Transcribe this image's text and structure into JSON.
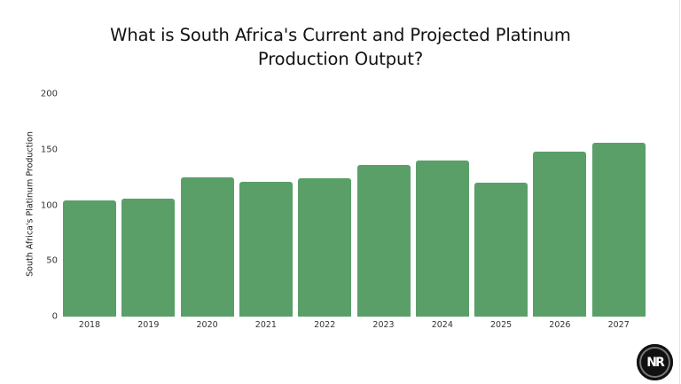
{
  "title": {
    "line1": "What is South Africa's Current and Projected Platinum",
    "line2": "Production Output?"
  },
  "logo": {
    "text": "NR"
  },
  "chart_data": {
    "type": "bar",
    "title": "What is South Africa's Current and Projected Platinum Production Output?",
    "xlabel": "",
    "ylabel": "South Africa's Platinum Production",
    "ylim": [
      0,
      200
    ],
    "yticks": [
      0,
      50,
      100,
      150,
      200
    ],
    "grid": false,
    "legend": null,
    "categories": [
      "2018",
      "2019",
      "2020",
      "2021",
      "2022",
      "2023",
      "2024",
      "2025",
      "2026",
      "2027"
    ],
    "values": [
      104,
      106,
      125,
      121,
      124,
      136,
      140,
      120,
      148,
      156
    ],
    "color": "#5a9f68"
  }
}
